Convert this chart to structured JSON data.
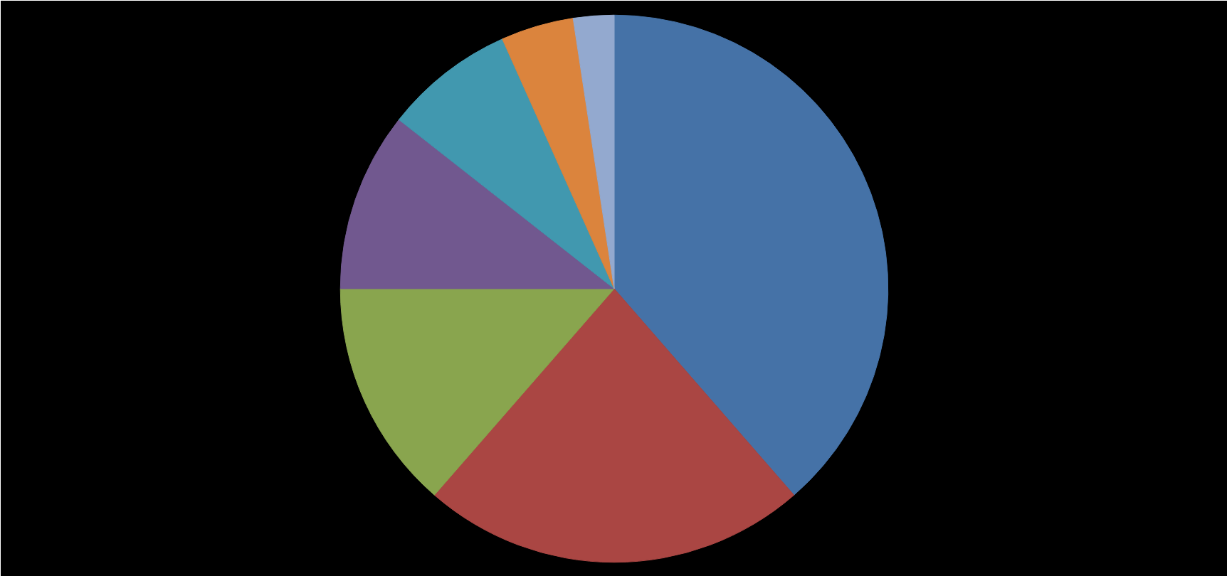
{
  "chart_data": {
    "type": "pie",
    "categories": [
      null,
      null,
      null,
      null,
      null,
      null,
      null
    ],
    "values": [
      38.6,
      22.8,
      13.6,
      10.6,
      7.7,
      4.3,
      2.4
    ],
    "colors": [
      "#4572a7",
      "#aa4643",
      "#89a54e",
      "#71588f",
      "#4198af",
      "#db843d",
      "#93a9cf"
    ]
  }
}
